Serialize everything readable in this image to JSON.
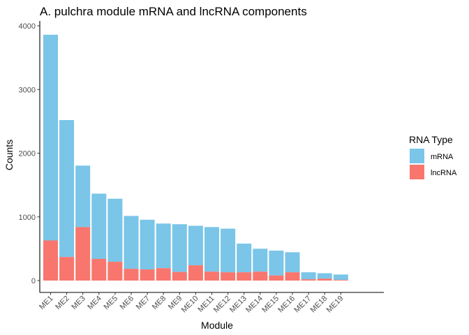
{
  "chart_data": {
    "type": "bar",
    "stacked": true,
    "title": "A. pulchra module mRNA and lncRNA components",
    "xlabel": "Module",
    "ylabel": "Counts",
    "ylim": [
      0,
      4050
    ],
    "yticks": [
      0,
      1000,
      2000,
      3000,
      4000
    ],
    "grid": false,
    "legend_title": "RNA Type",
    "legend_position": "right",
    "categories": [
      "ME1",
      "ME2",
      "ME3",
      "ME4",
      "ME5",
      "ME6",
      "ME7",
      "ME8",
      "ME9",
      "ME10",
      "ME11",
      "ME12",
      "ME13",
      "ME14",
      "ME15",
      "ME16",
      "ME17",
      "ME18",
      "ME19"
    ],
    "series": [
      {
        "name": "lncRNA",
        "color": "#F8766D",
        "values": [
          630,
          370,
          840,
          340,
          295,
          185,
          175,
          195,
          135,
          240,
          140,
          130,
          130,
          140,
          80,
          130,
          20,
          30,
          10
        ]
      },
      {
        "name": "mRNA",
        "color": "#7AC5E8",
        "values": [
          3230,
          2150,
          965,
          1025,
          990,
          830,
          780,
          700,
          750,
          620,
          700,
          685,
          450,
          360,
          390,
          315,
          110,
          85,
          85
        ]
      }
    ],
    "legend_order": [
      "mRNA",
      "lncRNA"
    ]
  }
}
